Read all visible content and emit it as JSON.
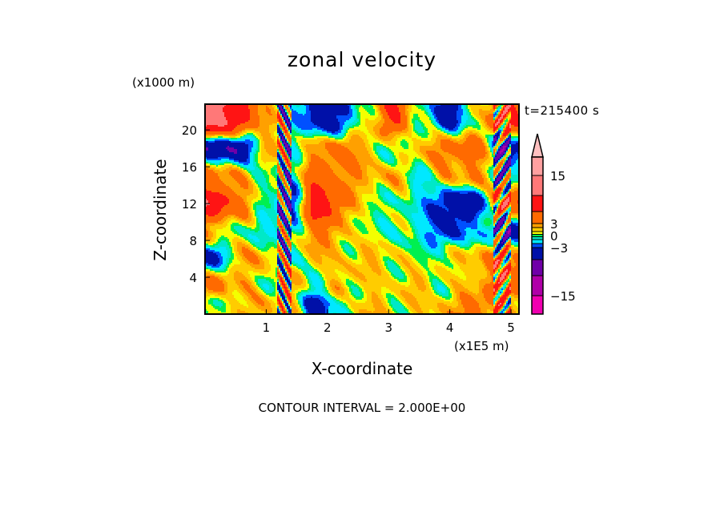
{
  "chart_data": {
    "type": "heatmap",
    "title": "zonal velocity",
    "xlabel": "X-coordinate",
    "ylabel": "Z-coordinate",
    "x_unit_label": "(x1E5 m)",
    "y_unit_label": "(x1000 m)",
    "time_label": "t=215400 s",
    "footer": "CONTOUR INTERVAL = 2.000E+00",
    "xlim": [
      0,
      5.13
    ],
    "ylim": [
      0,
      22.8
    ],
    "xticks": [
      1,
      2,
      3,
      4,
      5
    ],
    "xtick_labels": [
      "1",
      "2",
      "3",
      "4",
      "5"
    ],
    "yticks": [
      4,
      8,
      12,
      16,
      20
    ],
    "ytick_labels": [
      "4",
      "8",
      "12",
      "16",
      "20"
    ],
    "colorbar": {
      "range": [
        -19.6,
        19.6
      ],
      "tick_values": [
        15,
        3,
        0,
        -3,
        -15
      ],
      "tick_labels": [
        "15",
        "3",
        "0",
        "−3",
        "−15"
      ],
      "overflow_color": "#ffc0c0",
      "bands": [
        {
          "lo": 15,
          "hi": 19.6,
          "color": "#ffa0a0"
        },
        {
          "lo": 10,
          "hi": 15,
          "color": "#ff7878"
        },
        {
          "lo": 6,
          "hi": 10,
          "color": "#ff1414"
        },
        {
          "lo": 3,
          "hi": 6,
          "color": "#ff6a00"
        },
        {
          "lo": 2,
          "hi": 3,
          "color": "#ffa000"
        },
        {
          "lo": 1,
          "hi": 2,
          "color": "#ffcc00"
        },
        {
          "lo": 0.3,
          "hi": 1,
          "color": "#f4ff00"
        },
        {
          "lo": -0.3,
          "hi": 0.3,
          "color": "#00f050"
        },
        {
          "lo": -1,
          "hi": -0.3,
          "color": "#00e8c8"
        },
        {
          "lo": -2,
          "hi": -1,
          "color": "#00e8ff"
        },
        {
          "lo": -3,
          "hi": -2,
          "color": "#0050ff"
        },
        {
          "lo": -6,
          "hi": -3,
          "color": "#0010a8"
        },
        {
          "lo": -10,
          "hi": -6,
          "color": "#7000a8"
        },
        {
          "lo": -15,
          "hi": -10,
          "color": "#b000a8"
        },
        {
          "lo": -19.6,
          "hi": -15,
          "color": "#f000b0"
        }
      ]
    },
    "grid_z_top_to_bottom": [
      21,
      18,
      15,
      12,
      9,
      6,
      3,
      1
    ],
    "grid_x": [
      0.1,
      0.55,
      1.0,
      1.4,
      1.8,
      2.2,
      2.65,
      3.1,
      3.5,
      3.95,
      4.4,
      4.9
    ],
    "values": [
      [
        12,
        8,
        2,
        -1,
        -4,
        -4,
        1,
        6,
        0,
        -4,
        0,
        6
      ],
      [
        -5,
        -6,
        2,
        0,
        2,
        4,
        2,
        -1,
        2,
        4,
        4,
        -4
      ],
      [
        4,
        2,
        0,
        -1,
        5,
        4,
        2,
        2,
        -1,
        2,
        3,
        -1
      ],
      [
        9,
        4,
        0,
        -4,
        8,
        5,
        0,
        0,
        -1,
        -5,
        -5,
        6
      ],
      [
        2,
        0,
        -1,
        -1,
        4,
        2,
        0,
        0,
        -1,
        -4,
        -1,
        -4
      ],
      [
        -4,
        2,
        2,
        -1,
        2,
        1,
        2,
        1,
        0,
        1,
        2,
        4
      ],
      [
        4,
        2,
        0,
        2,
        -1,
        2,
        1,
        1,
        2,
        0,
        2,
        5
      ],
      [
        -1,
        2,
        2,
        1,
        -4,
        -1,
        2,
        1,
        1,
        2,
        4,
        2
      ]
    ]
  }
}
